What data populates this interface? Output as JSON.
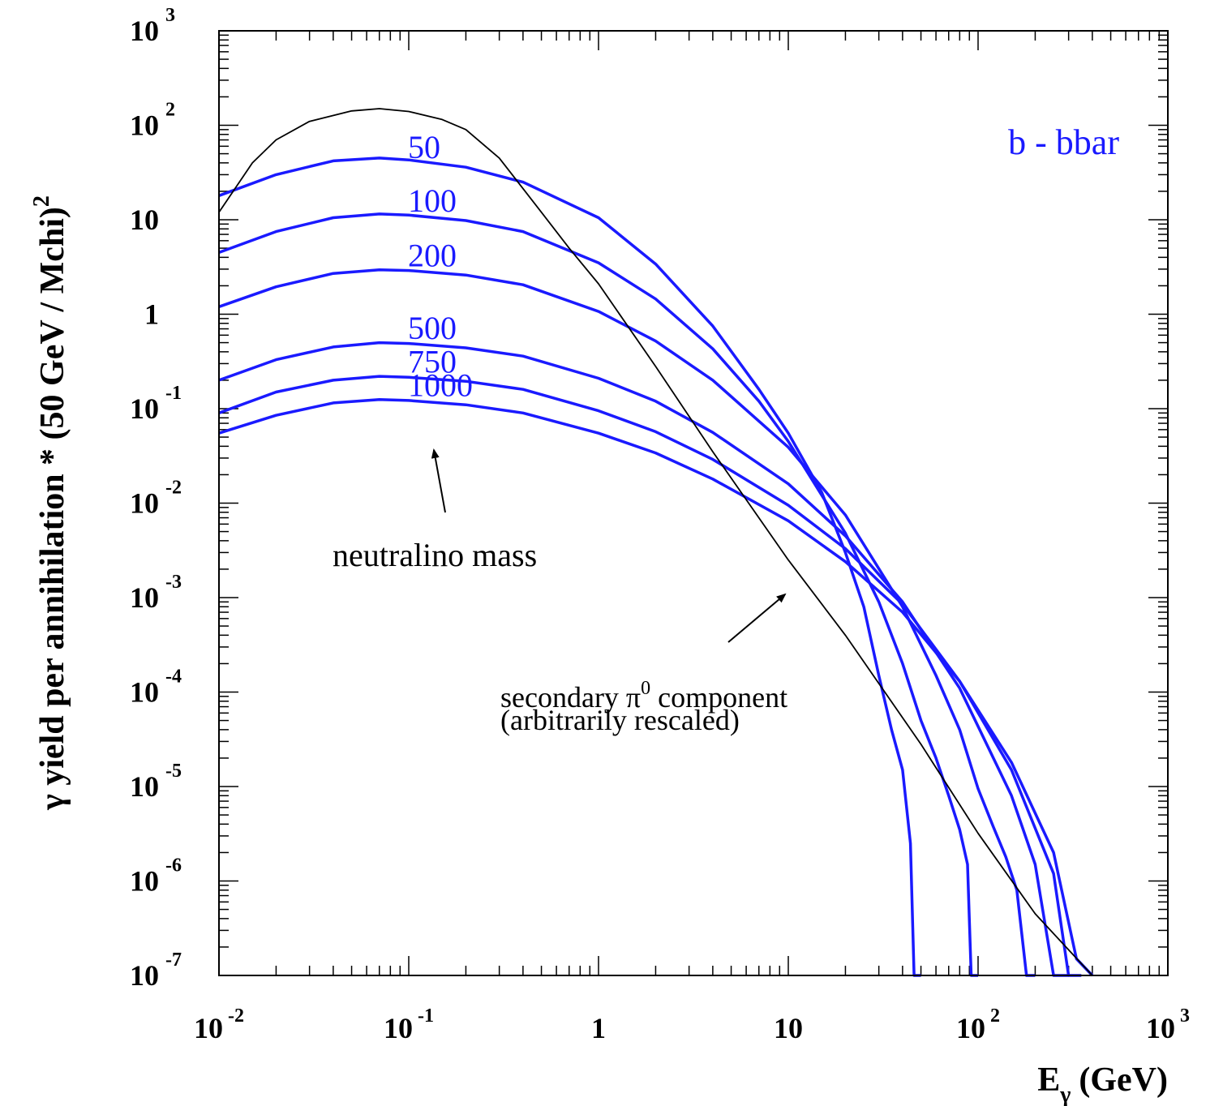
{
  "chart_data": {
    "type": "line",
    "title": "",
    "xlabel": "E",
    "xlabel_sub": "γ",
    "xlabel_unit": "(GeV)",
    "ylabel": "γ yield per annihilation * (50 GeV / Mchi)",
    "ylabel_exp": "2",
    "xscale": "log",
    "yscale": "log",
    "xlim": [
      0.01,
      1000
    ],
    "ylim": [
      1e-07,
      1000
    ],
    "xticks": [
      {
        "value": 0.01,
        "base": "10",
        "exp": "-2"
      },
      {
        "value": 0.1,
        "base": "10",
        "exp": "-1"
      },
      {
        "value": 1,
        "base": "1",
        "exp": ""
      },
      {
        "value": 10,
        "base": "10",
        "exp": ""
      },
      {
        "value": 100,
        "base": "10",
        "exp": "2"
      },
      {
        "value": 1000,
        "base": "10",
        "exp": "3"
      }
    ],
    "yticks": [
      {
        "value": 1000,
        "base": "10",
        "exp": "3"
      },
      {
        "value": 100,
        "base": "10",
        "exp": "2"
      },
      {
        "value": 10,
        "base": "10",
        "exp": ""
      },
      {
        "value": 1,
        "base": "1",
        "exp": ""
      },
      {
        "value": 0.1,
        "base": "10",
        "exp": "-1"
      },
      {
        "value": 0.01,
        "base": "10",
        "exp": "-2"
      },
      {
        "value": 0.001,
        "base": "10",
        "exp": "-3"
      },
      {
        "value": 0.0001,
        "base": "10",
        "exp": "-4"
      },
      {
        "value": 1e-05,
        "base": "10",
        "exp": "-5"
      },
      {
        "value": 1e-06,
        "base": "10",
        "exp": "-6"
      },
      {
        "value": 1e-07,
        "base": "10",
        "exp": "-7"
      }
    ],
    "channel_label": "b - bbar",
    "series_color": "#1a1aff",
    "secondary_color": "#000000",
    "series": [
      {
        "name": "50",
        "x": [
          0.01,
          0.02,
          0.04,
          0.07,
          0.1,
          0.2,
          0.4,
          1,
          2,
          4,
          7,
          10,
          15,
          20,
          25,
          30,
          35,
          40,
          44,
          46,
          50
        ],
        "y": [
          18,
          30,
          42,
          45,
          43,
          36,
          25,
          10.5,
          3.4,
          0.75,
          0.16,
          0.055,
          0.013,
          0.003,
          0.0008,
          0.00015,
          4e-05,
          1.5e-05,
          2.5e-06,
          1e-07,
          1e-07
        ]
      },
      {
        "name": "100",
        "x": [
          0.01,
          0.02,
          0.04,
          0.07,
          0.1,
          0.2,
          0.4,
          1,
          2,
          4,
          7,
          10,
          20,
          30,
          40,
          50,
          60,
          70,
          80,
          88,
          92,
          100
        ],
        "y": [
          4.5,
          7.5,
          10.5,
          11.5,
          11.2,
          9.8,
          7.5,
          3.5,
          1.45,
          0.43,
          0.12,
          0.045,
          0.0048,
          0.0009,
          0.0002,
          5e-05,
          2e-05,
          8e-06,
          3.5e-06,
          1.5e-06,
          1e-07,
          1e-07
        ]
      },
      {
        "name": "200",
        "x": [
          0.01,
          0.02,
          0.04,
          0.07,
          0.1,
          0.2,
          0.4,
          1,
          2,
          4,
          10,
          20,
          40,
          60,
          80,
          100,
          120,
          140,
          160,
          180,
          200
        ],
        "y": [
          1.2,
          1.95,
          2.7,
          2.95,
          2.9,
          2.6,
          2.05,
          1.07,
          0.52,
          0.2,
          0.039,
          0.0075,
          0.0008,
          0.00015,
          4e-05,
          9.5e-06,
          3.8e-06,
          1.8e-06,
          8e-07,
          1e-07,
          1e-07
        ]
      },
      {
        "name": "500",
        "x": [
          0.01,
          0.02,
          0.04,
          0.07,
          0.1,
          0.2,
          0.4,
          1,
          2,
          4,
          10,
          20,
          40,
          80,
          150,
          200,
          250,
          300
        ],
        "y": [
          0.2,
          0.33,
          0.45,
          0.5,
          0.49,
          0.44,
          0.36,
          0.21,
          0.12,
          0.056,
          0.016,
          0.0045,
          0.0009,
          0.00011,
          8e-06,
          1.5e-06,
          1e-07,
          1e-07
        ]
      },
      {
        "name": "750",
        "x": [
          0.01,
          0.02,
          0.04,
          0.07,
          0.1,
          0.2,
          0.4,
          1,
          2,
          4,
          10,
          20,
          40,
          80,
          150,
          250,
          300,
          350
        ],
        "y": [
          0.09,
          0.15,
          0.2,
          0.22,
          0.215,
          0.195,
          0.16,
          0.095,
          0.057,
          0.029,
          0.0095,
          0.0033,
          0.00085,
          0.00013,
          1.5e-05,
          1.2e-06,
          1e-07,
          1e-07
        ]
      },
      {
        "name": "1000",
        "x": [
          0.01,
          0.02,
          0.04,
          0.07,
          0.1,
          0.2,
          0.4,
          1,
          2,
          4,
          10,
          20,
          40,
          80,
          150,
          250,
          330,
          400
        ],
        "y": [
          0.055,
          0.085,
          0.115,
          0.125,
          0.122,
          0.11,
          0.09,
          0.055,
          0.034,
          0.018,
          0.0065,
          0.0024,
          0.0007,
          0.00013,
          1.8e-05,
          2e-06,
          1.5e-07,
          1e-07
        ]
      },
      {
        "name": "secondary π0 component",
        "x": [
          0.01,
          0.015,
          0.02,
          0.03,
          0.05,
          0.07,
          0.1,
          0.15,
          0.2,
          0.3,
          0.5,
          0.7,
          1,
          2,
          4,
          10,
          20,
          50,
          100,
          200,
          400
        ],
        "y": [
          12,
          40,
          70,
          110,
          142,
          150,
          140,
          115,
          90,
          45,
          12,
          5,
          2.1,
          0.28,
          0.035,
          0.0025,
          0.0004,
          2.8e-05,
          3.2e-06,
          4.5e-07,
          1e-07
        ]
      }
    ]
  },
  "annotations": {
    "neutralino_mass": "neutralino mass",
    "secondary_line1": "secondary π",
    "secondary_sup": "0",
    "secondary_line1_end": " component",
    "secondary_line2": "(arbitrarily rescaled)"
  }
}
